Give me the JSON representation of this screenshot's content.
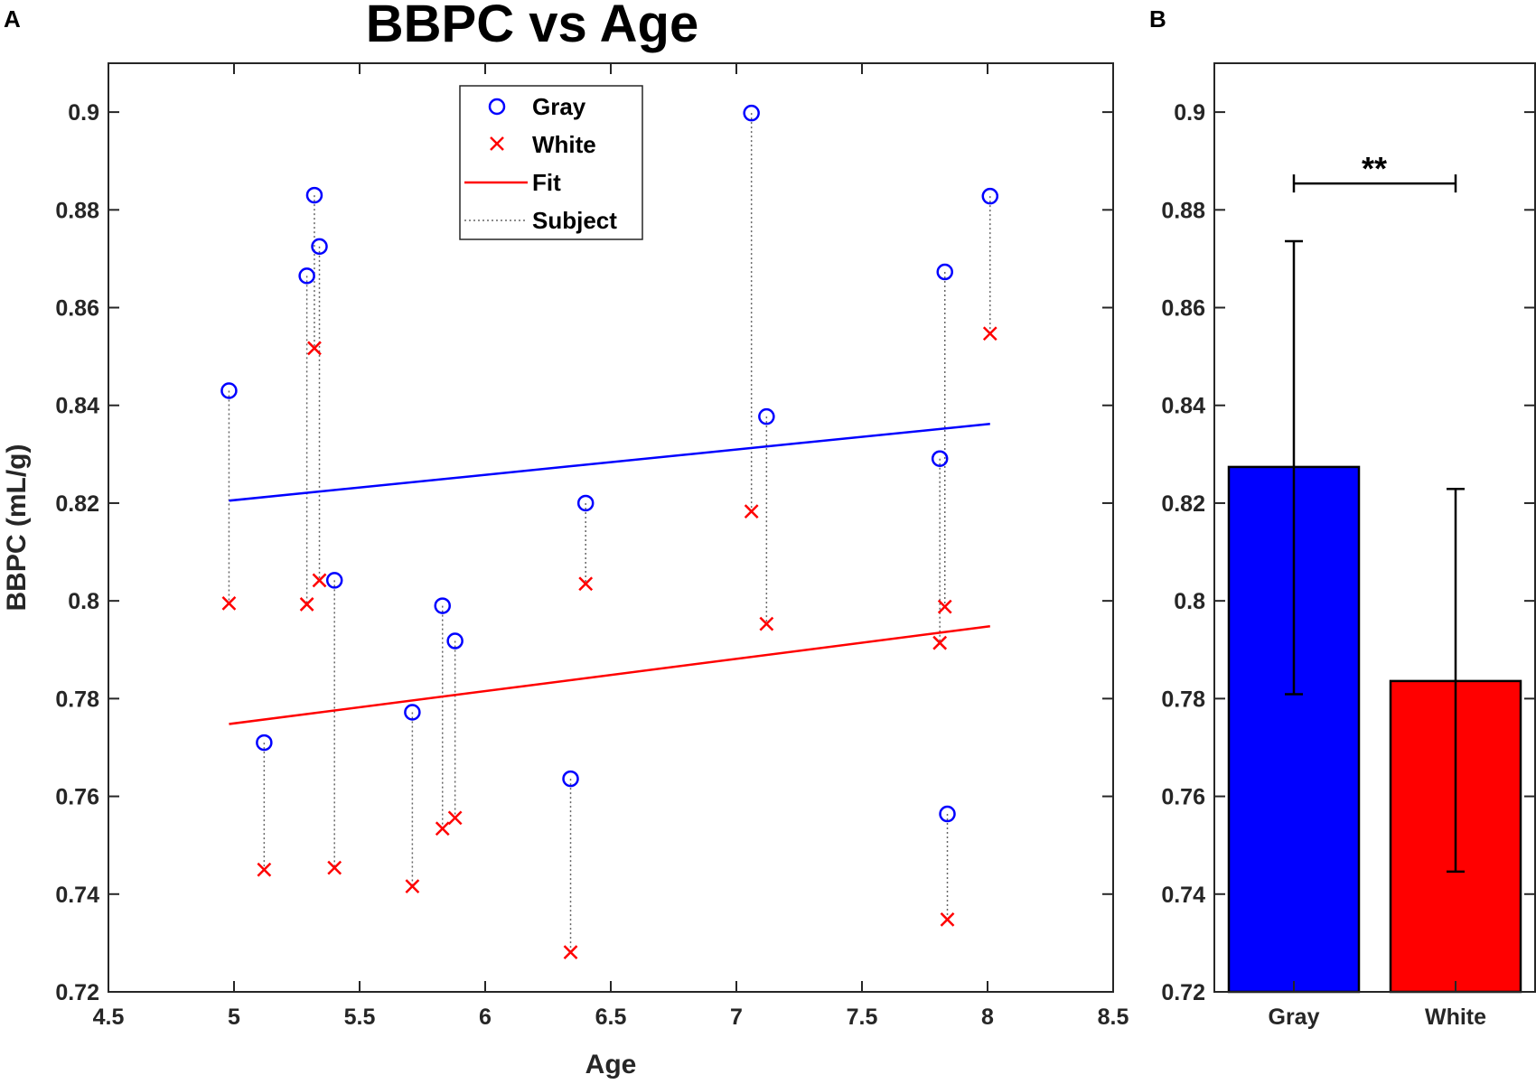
{
  "panels": [
    {
      "label": "A"
    },
    {
      "label": "B"
    }
  ],
  "colors": {
    "gray": "#0000ff",
    "white": "#ff0000",
    "subject_line": "#666666",
    "axes": "#262626"
  },
  "chart_data": [
    {
      "panel": "A",
      "type": "scatter",
      "title": "BBPC vs Age",
      "xlabel": "Age",
      "ylabel": "BBPC (mL/g)",
      "xlim": [
        4.5,
        8.5
      ],
      "ylim": [
        0.72,
        0.91
      ],
      "xticks": [
        "4.5",
        "5",
        "5.5",
        "6",
        "6.5",
        "7",
        "7.5",
        "8",
        "8.5"
      ],
      "yticks": [
        "0.72",
        "0.74",
        "0.76",
        "0.78",
        "0.8",
        "0.82",
        "0.84",
        "0.86",
        "0.88",
        "0.9"
      ],
      "grid": false,
      "legend": {
        "position": "top-center",
        "entries": [
          {
            "label": "Gray",
            "marker": "circle",
            "color": "#0000ff"
          },
          {
            "label": "White",
            "marker": "x",
            "color": "#ff0000"
          },
          {
            "label": "Fit",
            "marker": "solid-line",
            "color": "#ff0000"
          },
          {
            "label": "Subject",
            "marker": "dotted-line",
            "color": "#666666"
          }
        ]
      },
      "subjects": [
        {
          "age": 4.98,
          "gray": 0.843,
          "white": 0.7995
        },
        {
          "age": 5.12,
          "gray": 0.771,
          "white": 0.745
        },
        {
          "age": 5.29,
          "gray": 0.8665,
          "white": 0.7993
        },
        {
          "age": 5.32,
          "gray": 0.883,
          "white": 0.8517
        },
        {
          "age": 5.34,
          "gray": 0.8725,
          "white": 0.8042
        },
        {
          "age": 5.4,
          "gray": 0.8042,
          "white": 0.7454
        },
        {
          "age": 5.71,
          "gray": 0.7772,
          "white": 0.7416
        },
        {
          "age": 5.83,
          "gray": 0.799,
          "white": 0.7534
        },
        {
          "age": 5.88,
          "gray": 0.7918,
          "white": 0.7556
        },
        {
          "age": 6.34,
          "gray": 0.7636,
          "white": 0.7281
        },
        {
          "age": 6.4,
          "gray": 0.82,
          "white": 0.8035
        },
        {
          "age": 7.06,
          "gray": 0.8998,
          "white": 0.8183
        },
        {
          "age": 7.12,
          "gray": 0.8377,
          "white": 0.7953
        },
        {
          "age": 7.81,
          "gray": 0.8291,
          "white": 0.7914
        },
        {
          "age": 7.83,
          "gray": 0.8673,
          "white": 0.7988
        },
        {
          "age": 7.84,
          "gray": 0.7564,
          "white": 0.7348
        },
        {
          "age": 8.01,
          "gray": 0.8828,
          "white": 0.8547
        }
      ],
      "fits": [
        {
          "series": "Gray",
          "color": "#0000ff",
          "x": [
            4.98,
            8.01
          ],
          "y": [
            0.8205,
            0.8362
          ]
        },
        {
          "series": "White",
          "color": "#ff0000",
          "x": [
            4.98,
            8.01
          ],
          "y": [
            0.7748,
            0.7948
          ]
        }
      ]
    },
    {
      "panel": "B",
      "type": "bar",
      "categories": [
        "Gray",
        "White"
      ],
      "values": [
        0.8274,
        0.7836
      ],
      "error_low": [
        0.7809,
        0.7446
      ],
      "error_high": [
        0.8736,
        0.8229
      ],
      "colors": [
        "#0000ff",
        "#ff0000"
      ],
      "ylim": [
        0.72,
        0.91
      ],
      "yticks": [
        "0.72",
        "0.74",
        "0.76",
        "0.78",
        "0.8",
        "0.82",
        "0.84",
        "0.86",
        "0.88",
        "0.9"
      ],
      "significance": {
        "label": "**",
        "y": 0.8854
      }
    }
  ]
}
